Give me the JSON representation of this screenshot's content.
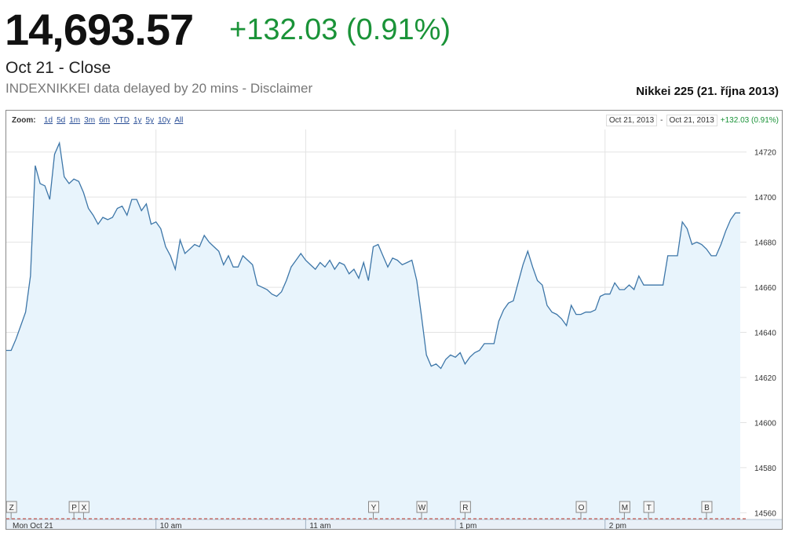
{
  "quote": {
    "price": "14,693.57",
    "change": "+132.03 (0.91%)",
    "close_label": "Oct 21 - Close",
    "source": "INDEXNIKKEI data delayed by 20 mins",
    "separator": " - ",
    "disclaimer": "Disclaimer"
  },
  "chart_title": "Nikkei 225 (21. října 2013)",
  "toolbar": {
    "zoom_label": "Zoom:",
    "zoom_options": [
      "1d",
      "5d",
      "1m",
      "3m",
      "6m",
      "YTD",
      "1y",
      "5y",
      "10y",
      "All"
    ],
    "range_start": "Oct 21, 2013",
    "range_sep": "-",
    "range_end": "Oct 21, 2013",
    "range_change": "+132.03 (0.91%)"
  },
  "colors": {
    "line": "#3d76a8",
    "fill": "#e8f4fc",
    "positive": "#1a9338",
    "baseline": "#c0392b"
  },
  "chart_data": {
    "type": "area",
    "x_tick_labels": [
      "Mon Oct 21",
      "10 am",
      "11 am",
      "1 pm",
      "2 pm"
    ],
    "y_ticks": [
      14560,
      14580,
      14600,
      14620,
      14640,
      14660,
      14680,
      14700,
      14720
    ],
    "ylim": [
      14557,
      14730
    ],
    "x_range": [
      0,
      152
    ],
    "x_tick_positions": [
      0,
      31,
      62,
      93,
      124
    ],
    "values": [
      14632,
      14632,
      14637,
      14643,
      14649,
      14665,
      14714,
      14706,
      14705,
      14699,
      14719,
      14724,
      14709,
      14706,
      14708,
      14707,
      14702,
      14695,
      14692,
      14688,
      14691,
      14690,
      14691,
      14695,
      14696,
      14692,
      14699,
      14699,
      14694,
      14697,
      14688,
      14689,
      14686,
      14678,
      14674,
      14668,
      14681,
      14675,
      14677,
      14679,
      14678,
      14683,
      14680,
      14678,
      14676,
      14670,
      14674,
      14669,
      14669,
      14674,
      14672,
      14670,
      14661,
      14660,
      14659,
      14657,
      14656,
      14658,
      14663,
      14669,
      14672,
      14675,
      14672,
      14670,
      14668,
      14671,
      14669,
      14672,
      14668,
      14671,
      14670,
      14666,
      14668,
      14664,
      14671,
      14663,
      14678,
      14679,
      14674,
      14669,
      14673,
      14672,
      14670,
      14671,
      14672,
      14663,
      14647,
      14630,
      14625,
      14626,
      14624,
      14628,
      14630,
      14629,
      14631,
      14626,
      14629,
      14631,
      14632,
      14635,
      14635,
      14635,
      14645,
      14650,
      14653,
      14654,
      14662,
      14670,
      14676,
      14669,
      14663,
      14661,
      14652,
      14649,
      14648,
      14646,
      14643,
      14652,
      14648,
      14648,
      14649,
      14649,
      14650,
      14656,
      14657,
      14657,
      14662,
      14659,
      14659,
      14661,
      14659,
      14665,
      14661,
      14661,
      14661,
      14661,
      14661,
      14674,
      14674,
      14674,
      14689,
      14686,
      14679,
      14680,
      14679,
      14677,
      14674,
      14674,
      14679,
      14685,
      14690,
      14693,
      14693
    ],
    "event_markers": [
      {
        "letter": "Z",
        "x": 1
      },
      {
        "letter": "P",
        "x": 14
      },
      {
        "letter": "X",
        "x": 16
      },
      {
        "letter": "Y",
        "x": 76
      },
      {
        "letter": "W",
        "x": 86
      },
      {
        "letter": "R",
        "x": 95
      },
      {
        "letter": "O",
        "x": 119
      },
      {
        "letter": "M",
        "x": 128
      },
      {
        "letter": "T",
        "x": 133
      },
      {
        "letter": "B",
        "x": 145
      }
    ],
    "grid": true
  }
}
